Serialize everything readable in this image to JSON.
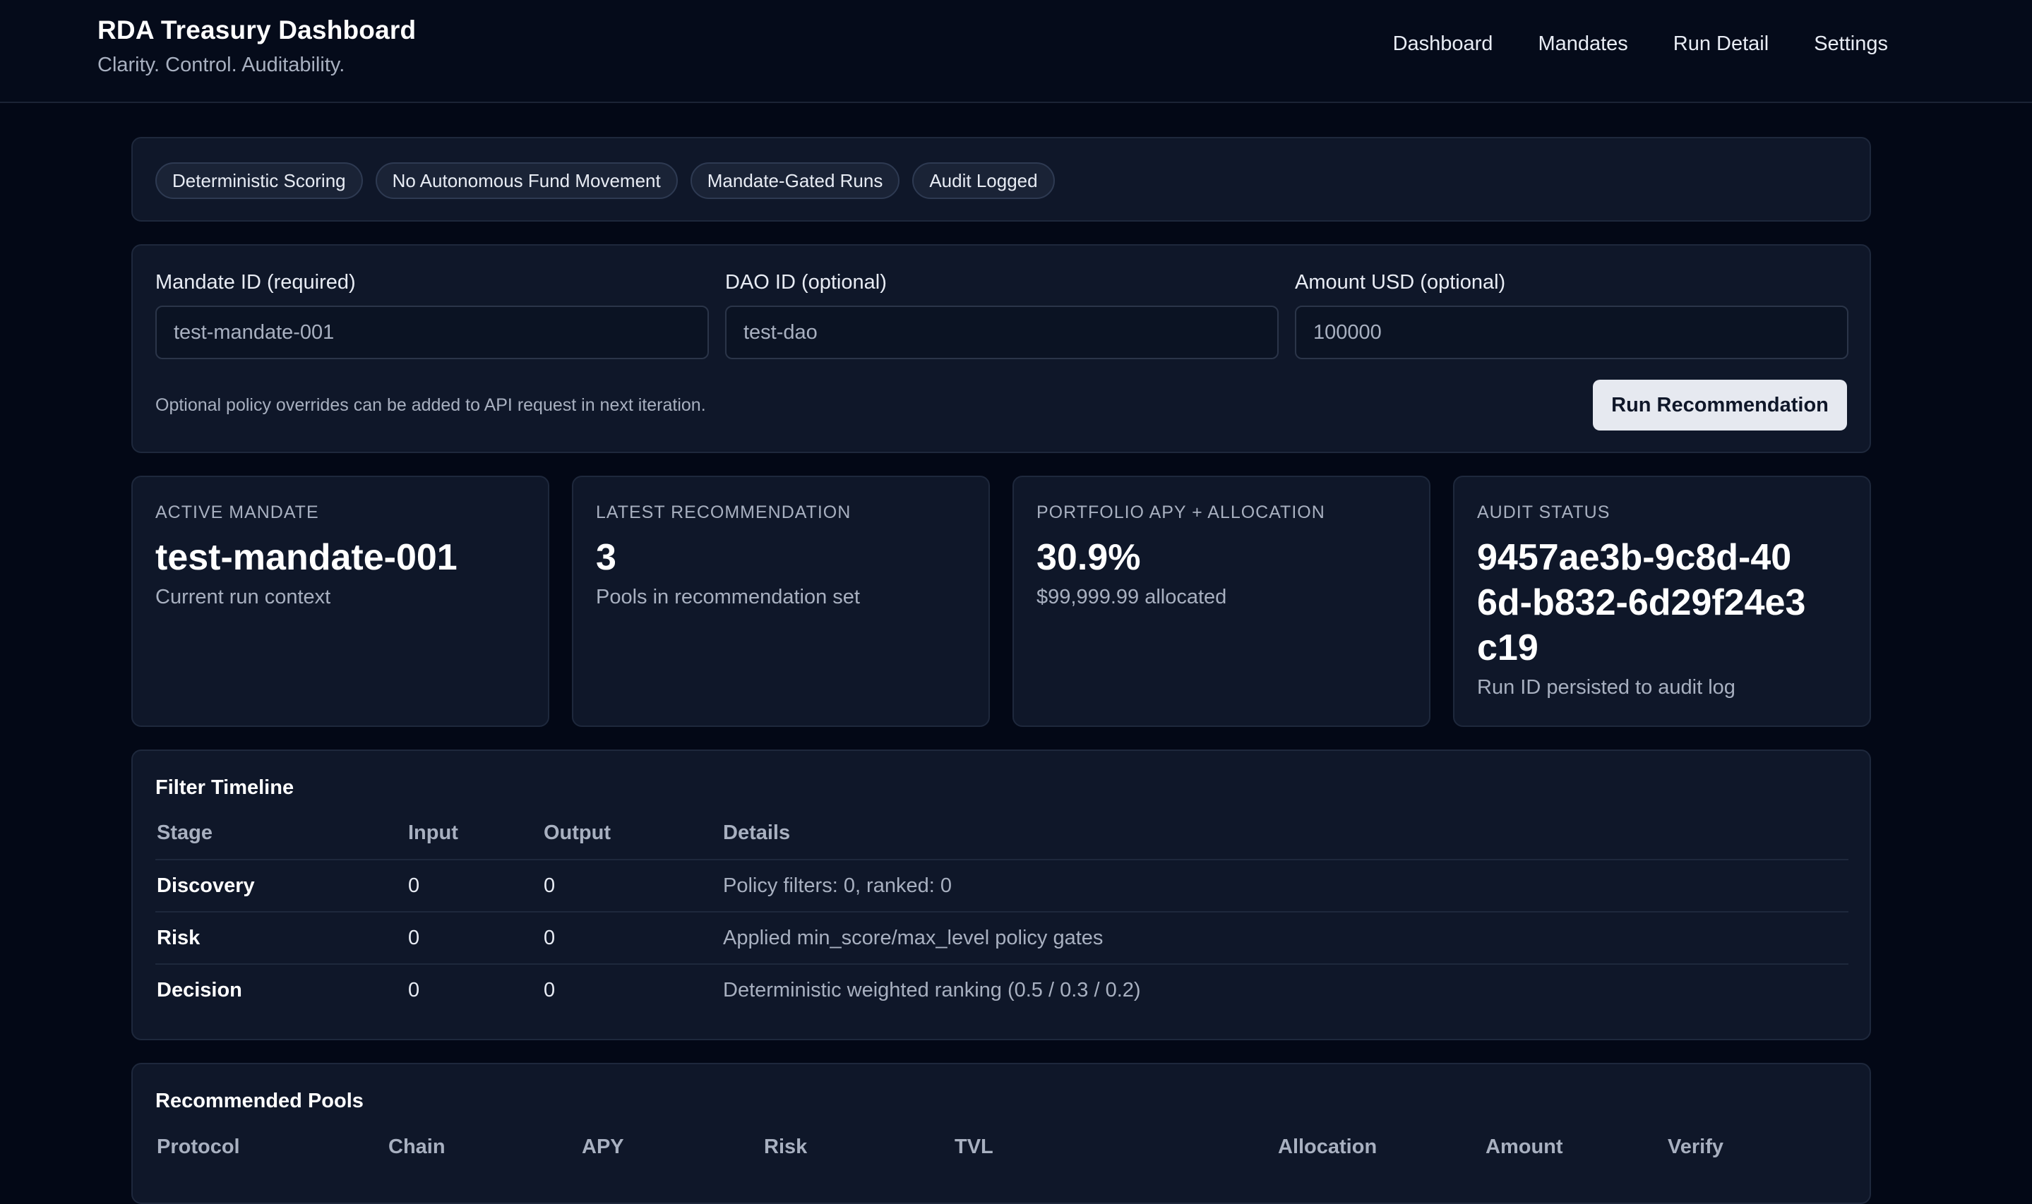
{
  "header": {
    "title": "RDA Treasury Dashboard",
    "subtitle": "Clarity. Control. Auditability.",
    "nav": [
      "Dashboard",
      "Mandates",
      "Run Detail",
      "Settings"
    ]
  },
  "badges": [
    "Deterministic Scoring",
    "No Autonomous Fund Movement",
    "Mandate-Gated Runs",
    "Audit Logged"
  ],
  "form": {
    "mandate_label": "Mandate ID (required)",
    "mandate_value": "test-mandate-001",
    "dao_label": "DAO ID (optional)",
    "dao_value": "test-dao",
    "amount_label": "Amount USD (optional)",
    "amount_value": "100000",
    "hint": "Optional policy overrides can be added to API request in next iteration.",
    "run_button": "Run Recommendation"
  },
  "stats": {
    "active_mandate": {
      "label": "ACTIVE MANDATE",
      "value": "test-mandate-001",
      "sub": "Current run context"
    },
    "latest_recommendation": {
      "label": "LATEST RECOMMENDATION",
      "value": "3",
      "sub": "Pools in recommendation set"
    },
    "portfolio": {
      "label": "PORTFOLIO APY + ALLOCATION",
      "value": "30.9%",
      "sub": "$99,999.99 allocated"
    },
    "audit": {
      "label": "AUDIT STATUS",
      "value": "9457ae3b-9c8d-406d-b832-6d29f24e3c19",
      "sub": "Run ID persisted to audit log"
    }
  },
  "filter_timeline": {
    "title": "Filter Timeline",
    "columns": [
      "Stage",
      "Input",
      "Output",
      "Details"
    ],
    "rows": [
      {
        "stage": "Discovery",
        "input": "0",
        "output": "0",
        "details": "Policy filters: 0, ranked: 0"
      },
      {
        "stage": "Risk",
        "input": "0",
        "output": "0",
        "details": "Applied min_score/max_level policy gates"
      },
      {
        "stage": "Decision",
        "input": "0",
        "output": "0",
        "details": "Deterministic weighted ranking (0.5 / 0.3 / 0.2)"
      }
    ]
  },
  "recommended_pools": {
    "title": "Recommended Pools",
    "columns": [
      "Protocol",
      "Chain",
      "APY",
      "Risk",
      "TVL",
      "Allocation",
      "Amount",
      "Verify"
    ]
  }
}
